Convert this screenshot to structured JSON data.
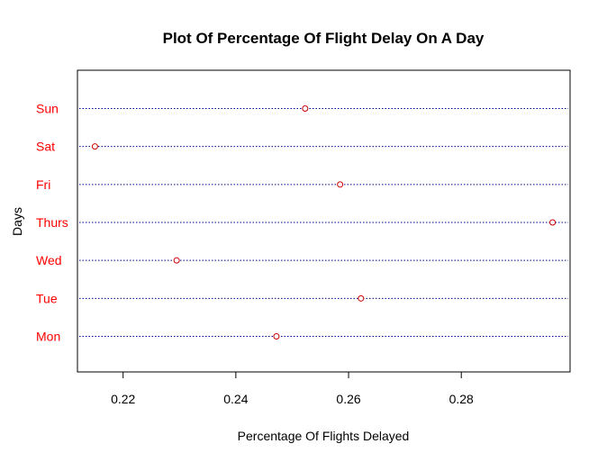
{
  "chart_data": {
    "type": "scatter",
    "subtype": "dotchart",
    "title": "Plot Of Percentage Of Flight Delay On A Day",
    "xlabel": "Percentage Of Flights Delayed",
    "ylabel": "Days",
    "categories": [
      "Mon",
      "Tue",
      "Wed",
      "Thurs",
      "Fri",
      "Sat",
      "Sun"
    ],
    "values": [
      0.2472,
      0.2622,
      0.2295,
      0.2962,
      0.2585,
      0.215,
      0.2523
    ],
    "xlim": [
      0.2119,
      0.2993
    ],
    "xticks": [
      "0.22",
      "0.24",
      "0.26",
      "0.28"
    ],
    "xtick_values": [
      0.22,
      0.24,
      0.26,
      0.28
    ],
    "grid": "dotted horizontal lines per category",
    "colors": {
      "category_labels": "#ff0000",
      "points": "#cc0000",
      "guide_lines": "#00008b",
      "axes": "#000000"
    }
  }
}
